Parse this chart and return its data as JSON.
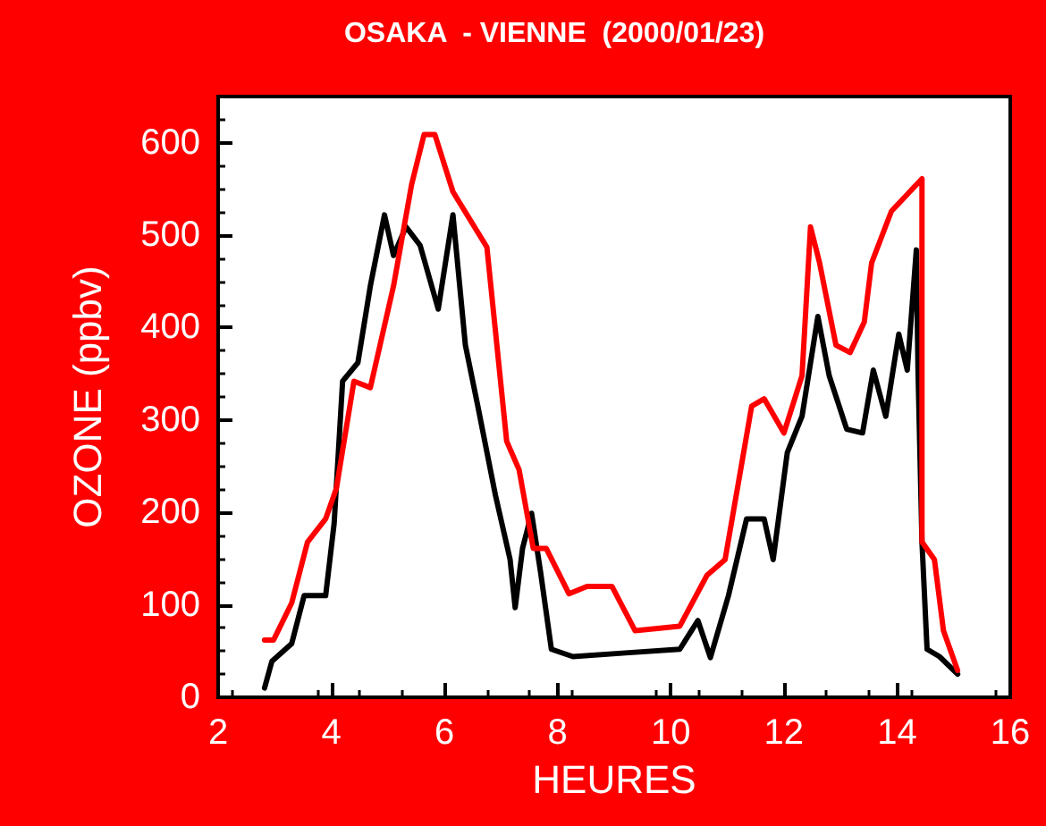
{
  "chart_data": {
    "type": "line",
    "title": "OSAKA  - VIENNE  (2000/01/23)",
    "xlabel": "HEURES",
    "ylabel": "OZONE (ppbv)",
    "xlim": [
      2,
      16
    ],
    "xticks": [
      2,
      4,
      6,
      8,
      10,
      12,
      14,
      16
    ],
    "ylim": [
      0,
      650
    ],
    "yticks": [
      0,
      100,
      200,
      300,
      400,
      500,
      600
    ],
    "grid": false,
    "marker": "none",
    "line_style": "solid",
    "series": [
      {
        "color": "#000000",
        "x": [
          2.82,
          2.95,
          3.3,
          3.52,
          3.9,
          4.05,
          4.2,
          4.47,
          4.69,
          4.94,
          5.1,
          5.32,
          5.57,
          5.89,
          6.15,
          6.37,
          6.59,
          6.9,
          7.16,
          7.25,
          7.38,
          7.54,
          7.7,
          7.89,
          8.27,
          9.2,
          10.16,
          10.48,
          10.7,
          11.02,
          11.34,
          11.65,
          11.81,
          12.06,
          12.32,
          12.6,
          12.8,
          13.11,
          13.39,
          13.58,
          13.8,
          14.03,
          14.18,
          14.34,
          14.37,
          14.44,
          14.53,
          14.75,
          15.07
        ],
        "values": [
          10,
          39,
          58,
          110,
          110,
          188,
          342,
          362,
          445,
          522,
          478,
          509,
          489,
          420,
          522,
          381,
          315,
          219,
          149,
          97,
          161,
          199,
          135,
          52,
          44,
          48,
          52,
          83,
          43,
          110,
          193,
          193,
          149,
          265,
          304,
          412,
          348,
          290,
          286,
          354,
          304,
          393,
          354,
          484,
          354,
          168,
          52,
          44,
          25
        ]
      },
      {
        "color": "#ff0000",
        "x": [
          2.82,
          2.98,
          3.1,
          3.3,
          3.58,
          3.9,
          4.09,
          4.4,
          4.69,
          5.1,
          5.42,
          5.64,
          5.83,
          6.15,
          6.75,
          7.1,
          7.32,
          7.57,
          7.8,
          8.2,
          8.52,
          8.96,
          9.37,
          10.16,
          10.64,
          10.96,
          11.43,
          11.65,
          12.0,
          12.32,
          12.47,
          12.63,
          12.92,
          13.17,
          13.42,
          13.55,
          13.9,
          14.44,
          14.44,
          14.66,
          14.82,
          15.07
        ],
        "values": [
          62,
          62,
          77,
          102,
          168,
          193,
          226,
          342,
          335,
          445,
          555,
          609,
          609,
          547,
          487,
          277,
          246,
          161,
          161,
          112,
          120,
          120,
          72,
          77,
          132,
          149,
          315,
          323,
          286,
          348,
          509,
          470,
          381,
          373,
          406,
          470,
          526,
          561,
          168,
          149,
          72,
          29
        ]
      }
    ]
  }
}
